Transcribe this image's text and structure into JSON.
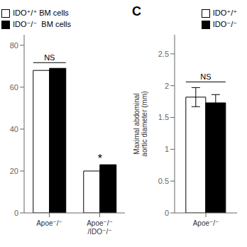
{
  "chart_data": [
    {
      "type": "bar",
      "categories": [
        "Apoe⁻/⁻",
        "Apoe⁻/⁻\n/IDO⁻/⁻"
      ],
      "series": [
        {
          "name": "IDO⁺/⁺ BM cells",
          "color": "#ffffff",
          "values": [
            68,
            20
          ]
        },
        {
          "name": "IDO⁻/⁻  BM cells",
          "color": "#000000",
          "values": [
            69,
            23
          ]
        }
      ],
      "ylim": [
        0,
        85
      ],
      "yticks": [
        0,
        20,
        40,
        60,
        80
      ],
      "grid": false,
      "legend": "top",
      "annotations": [
        {
          "text": "NS",
          "category": "Apoe⁻/⁻",
          "bracket": true
        },
        {
          "text": "*",
          "category": "Apoe⁻/⁻\n/IDO⁻/⁻"
        }
      ]
    },
    {
      "type": "bar",
      "categories": [
        "Apoe⁻/⁻"
      ],
      "series": [
        {
          "name": "IDO⁺/⁺",
          "color": "#ffffff",
          "values": [
            1.82
          ],
          "errors": [
            0.15
          ]
        },
        {
          "name": "IDO⁻/⁻",
          "color": "#000000",
          "values": [
            1.73
          ],
          "errors": [
            0.13
          ]
        }
      ],
      "ylim": [
        0,
        2.8
      ],
      "yticks": [
        0,
        0.5,
        1,
        1.5,
        2,
        2.5
      ],
      "y_label": "Maximal abdominal\naortic diameter (mm)",
      "grid": false,
      "legend": "top",
      "annotations": [
        {
          "text": "NS",
          "category": "Apoe⁻/⁻",
          "bracket": true
        },
        {
          "text": "C"
        }
      ]
    }
  ]
}
